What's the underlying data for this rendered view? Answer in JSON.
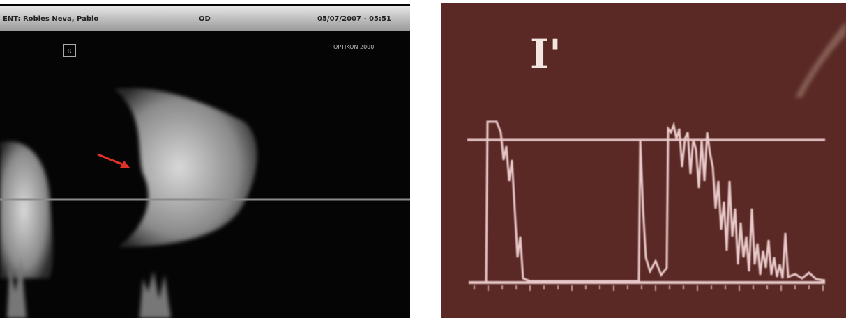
{
  "header": {
    "patient": "ENT: Robles Neva, Pablo",
    "eye": "OD",
    "date": "05/07/2007 - 05:51"
  },
  "left_panel": {
    "marker": "R",
    "device": "OPTIKON 2000"
  },
  "right_panel": {
    "label": "I'"
  }
}
